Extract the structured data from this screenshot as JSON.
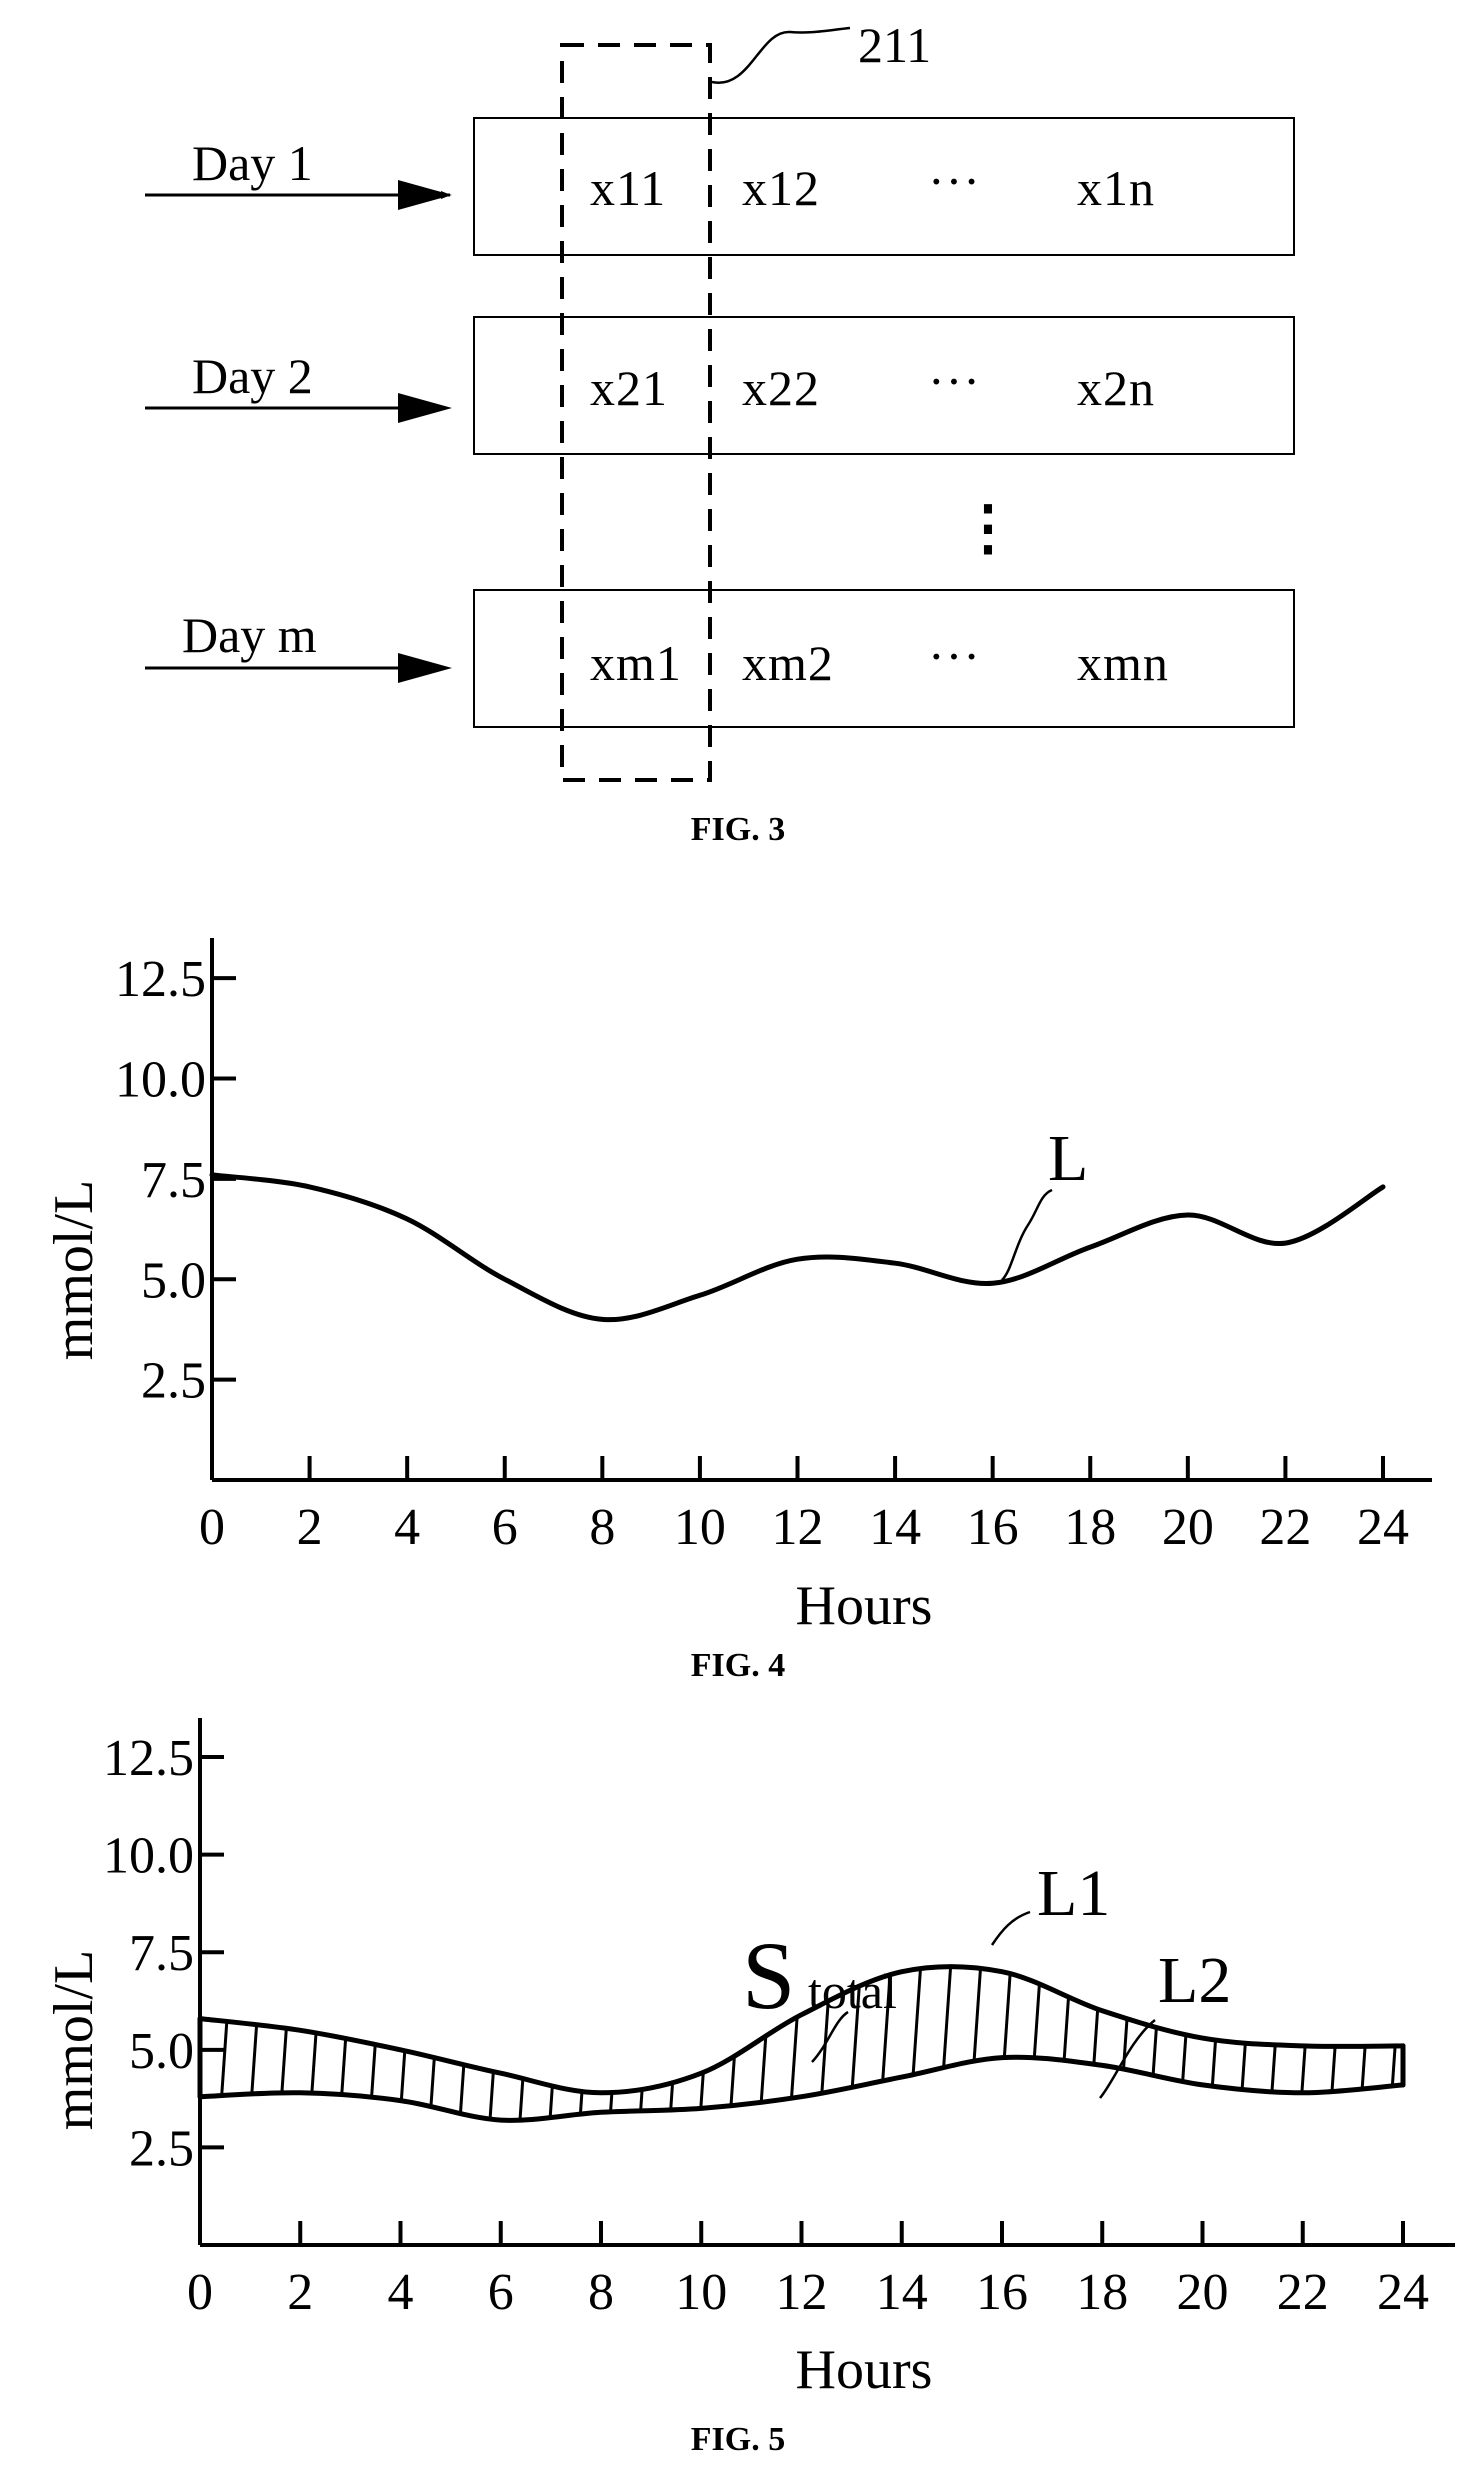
{
  "fig3": {
    "ref": "211",
    "rows": [
      {
        "day": "Day 1",
        "cells": [
          "x11",
          "x12",
          "x1n"
        ]
      },
      {
        "day": "Day 2",
        "cells": [
          "x21",
          "x22",
          "x2n"
        ]
      },
      {
        "day": "Day m",
        "cells": [
          "xm1",
          "xm2",
          "xmn"
        ]
      }
    ],
    "ellipsis_h": "···",
    "ellipsis_v": "⋮",
    "caption": "FIG. 3"
  },
  "fig4": {
    "caption": "FIG. 4",
    "curve_label": "L",
    "chart_data": {
      "type": "line",
      "xlabel": "Hours",
      "ylabel": "mmol/L",
      "xlim": [
        0,
        24
      ],
      "ylim": [
        0,
        13.5
      ],
      "x_ticks": [
        "0",
        "2",
        "4",
        "6",
        "8",
        "10",
        "12",
        "14",
        "16",
        "18",
        "20",
        "22",
        "24"
      ],
      "y_ticks": [
        "2.5",
        "5.0",
        "7.5",
        "10.0",
        "12.5"
      ],
      "series": [
        {
          "name": "L",
          "x": [
            0,
            2,
            4,
            6,
            8,
            10,
            12,
            14,
            16,
            18,
            20,
            22,
            24
          ],
          "y": [
            7.6,
            7.3,
            6.5,
            5.0,
            4.0,
            4.6,
            5.5,
            5.4,
            4.9,
            5.8,
            6.6,
            5.9,
            7.3
          ]
        }
      ]
    }
  },
  "fig5": {
    "caption": "FIG. 5",
    "area_label_main": "S",
    "area_label_sub": "total",
    "l1_label": "L1",
    "l2_label": "L2",
    "chart_data": {
      "type": "area",
      "xlabel": "Hours",
      "ylabel": "mmol/L",
      "xlim": [
        0,
        24
      ],
      "ylim": [
        0,
        13.5
      ],
      "x_ticks": [
        "0",
        "2",
        "4",
        "6",
        "8",
        "10",
        "12",
        "14",
        "16",
        "18",
        "20",
        "22",
        "24"
      ],
      "y_ticks": [
        "2.5",
        "5.0",
        "7.5",
        "10.0",
        "12.5"
      ],
      "series": [
        {
          "name": "L1",
          "x": [
            0,
            2,
            4,
            6,
            8,
            10,
            12,
            14,
            16,
            18,
            20,
            22,
            24
          ],
          "y": [
            5.8,
            5.5,
            5.0,
            4.4,
            3.9,
            4.4,
            5.9,
            7.0,
            7.0,
            6.0,
            5.3,
            5.1,
            5.1
          ]
        },
        {
          "name": "L2",
          "x": [
            0,
            2,
            4,
            6,
            8,
            10,
            12,
            14,
            16,
            18,
            20,
            22,
            24
          ],
          "y": [
            3.8,
            3.9,
            3.7,
            3.2,
            3.4,
            3.5,
            3.8,
            4.3,
            4.8,
            4.6,
            4.1,
            3.9,
            4.1
          ]
        }
      ]
    }
  }
}
